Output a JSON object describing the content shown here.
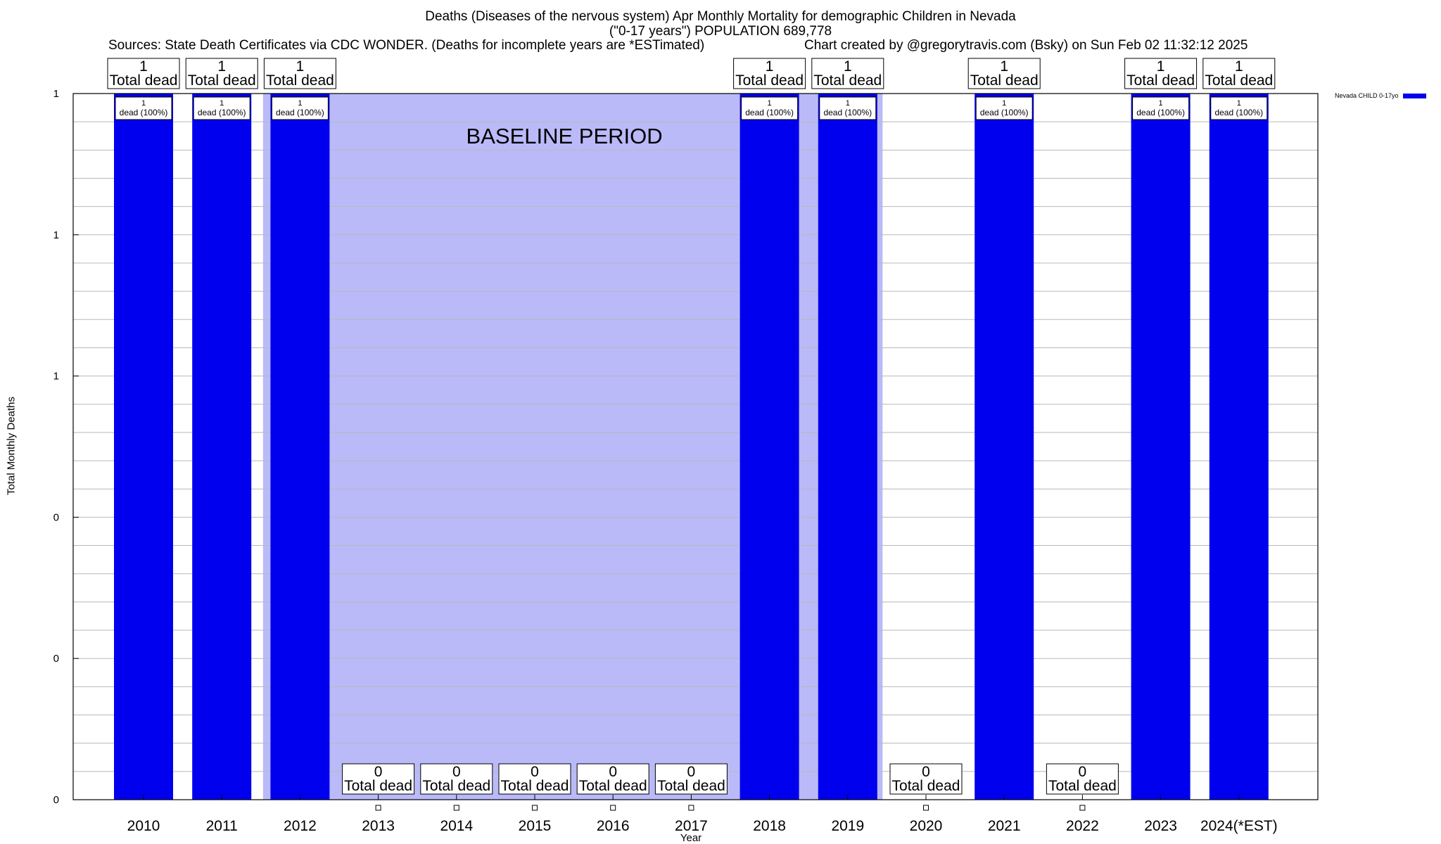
{
  "header": {
    "title_line1": "Deaths (Diseases of the nervous system) Apr Monthly Mortality for demographic Children in Nevada",
    "title_line2": "(\"0-17 years\") POPULATION 689,778",
    "sources": "Sources: State Death Certificates via CDC WONDER. (Deaths for incomplete years are *ESTimated)",
    "credit": "Chart created by @gregorytravis.com (Bsky) on Sun Feb 02 11:32:12 2025"
  },
  "legend": {
    "label": "Nevada CHILD 0-17yo",
    "color": "#0000ee"
  },
  "chart_data": {
    "type": "bar",
    "title": "Deaths (Diseases of the nervous system) Apr Monthly Mortality for demographic Children in Nevada",
    "xlabel": "Year",
    "ylabel": "Total Monthly Deaths",
    "ylim": [
      0,
      1
    ],
    "y_tick_labels": [
      "0",
      "0",
      "0",
      "1",
      "1",
      "1"
    ],
    "categories": [
      "2010",
      "2011",
      "2012",
      "2013",
      "2014",
      "2015",
      "2016",
      "2017",
      "2018",
      "2019",
      "2020",
      "2021",
      "2022",
      "2023",
      "2024(*EST)"
    ],
    "series": [
      {
        "name": "Nevada CHILD 0-17yo",
        "color": "#0000ee",
        "values": [
          1,
          1,
          1,
          0,
          0,
          0,
          0,
          0,
          1,
          1,
          0,
          1,
          0,
          1,
          1
        ]
      }
    ],
    "total_labels": [
      "1",
      "1",
      "1",
      "0",
      "0",
      "0",
      "0",
      "0",
      "1",
      "1",
      "0",
      "1",
      "0",
      "1",
      "1"
    ],
    "total_caption": "Total dead",
    "pct_labels": [
      "1\ndead (100%)",
      "1\ndead (100%)",
      "1\ndead (100%)",
      "",
      "",
      "",
      "",
      "",
      "1\ndead (100%)",
      "1\ndead (100%)",
      "",
      "1\ndead (100%)",
      "",
      "1\ndead (100%)",
      "1\ndead (100%)"
    ],
    "baseline": {
      "label": "BASELINE PERIOD",
      "from": "2012",
      "to": "2019",
      "color": "#babaf8"
    },
    "grid": true,
    "legend_position": "top-right"
  }
}
